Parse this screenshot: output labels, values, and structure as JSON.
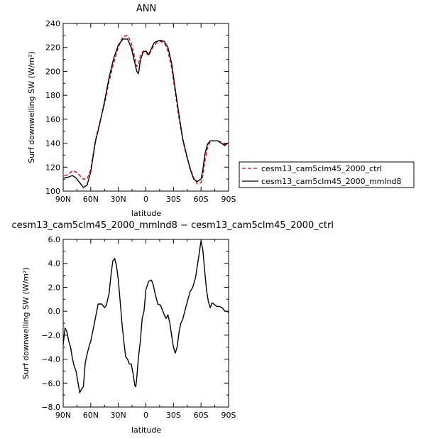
{
  "colors": {
    "ctrl": "#e00000",
    "mmlnd8": "#000000",
    "frame": "#000000",
    "background": "#ffffff"
  },
  "chart_data": [
    {
      "type": "line",
      "title": "ANN",
      "xlabel": "latitude",
      "ylabel": "Surf downwelling SW (W/m²)",
      "xlim": [
        90,
        -90
      ],
      "ylim": [
        100,
        240
      ],
      "x_ticks": [
        90,
        60,
        30,
        0,
        -30,
        -60,
        -90
      ],
      "x_tick_labels": [
        "90N",
        "60N",
        "30N",
        "0",
        "30S",
        "60S",
        "90S"
      ],
      "y_ticks": [
        100,
        120,
        140,
        160,
        180,
        200,
        220,
        240
      ],
      "y_tick_labels": [
        "100",
        "120",
        "140",
        "160",
        "180",
        "200",
        "220",
        "240"
      ],
      "legend_position": "right",
      "series": [
        {
          "name": "cesm13_cam5clm45_2000_ctrl",
          "color": "#e00000",
          "dash": "dashed",
          "x": [
            89,
            85,
            80,
            76,
            72,
            68,
            64,
            60,
            55,
            50,
            45,
            40,
            35,
            30,
            25,
            20,
            16,
            13,
            10,
            8,
            6,
            3,
            0,
            -3,
            -6,
            -9,
            -12,
            -16,
            -20,
            -24,
            -28,
            -32,
            -36,
            -40,
            -44,
            -48,
            -52,
            -56,
            -60,
            -62,
            -64,
            -67,
            -70,
            -74,
            -78,
            -82,
            -86,
            -89
          ],
          "y": [
            113,
            113.5,
            117,
            116,
            113,
            110,
            110,
            118,
            142,
            158,
            173,
            192,
            207,
            220,
            229,
            230,
            224,
            214,
            204,
            206,
            213,
            217,
            216,
            213,
            218,
            222,
            224,
            225,
            224,
            217,
            203,
            182,
            161,
            143,
            130,
            120,
            111,
            106,
            107,
            113,
            124,
            136,
            141,
            142,
            142,
            141,
            139,
            140
          ]
        },
        {
          "name": "cesm13_cam5clm45_2000_mmlnd8",
          "color": "#000000",
          "dash": "solid",
          "x": [
            89,
            85,
            80,
            76,
            72,
            68,
            64,
            60,
            55,
            50,
            45,
            40,
            35,
            30,
            25,
            20,
            16,
            13,
            10,
            8,
            6,
            3,
            0,
            -3,
            -6,
            -9,
            -12,
            -16,
            -20,
            -24,
            -28,
            -32,
            -36,
            -40,
            -44,
            -48,
            -52,
            -56,
            -60,
            -62,
            -64,
            -67,
            -70,
            -74,
            -78,
            -82,
            -86,
            -89
          ],
          "y": [
            111,
            111.5,
            113,
            111,
            107,
            103,
            105,
            116,
            141,
            157,
            175,
            195,
            211,
            222,
            227,
            227,
            220,
            210,
            200,
            198,
            209,
            216,
            217,
            214,
            219,
            224,
            225,
            226,
            225,
            220,
            207,
            185,
            164,
            144,
            131,
            119,
            110,
            108,
            110,
            118,
            130,
            139,
            142,
            142,
            142,
            140,
            138,
            140
          ]
        }
      ]
    },
    {
      "type": "line",
      "title": "cesm13_cam5clm45_2000_mmlnd8 − cesm13_cam5clm45_2000_ctrl",
      "xlabel": "latitude",
      "ylabel": "Surf downwelling SW (W/m²)",
      "xlim": [
        90,
        -90
      ],
      "ylim": [
        -8,
        6
      ],
      "x_ticks": [
        90,
        60,
        30,
        0,
        -30,
        -60,
        -90
      ],
      "x_tick_labels": [
        "90N",
        "60N",
        "30N",
        "0",
        "30S",
        "60S",
        "90S"
      ],
      "y_ticks": [
        -8,
        -6,
        -4,
        -2,
        0,
        2,
        4,
        6
      ],
      "y_tick_labels": [
        "−8.0",
        "−6.0",
        "−4.0",
        "−2.0",
        "0.0",
        "2.0",
        "4.0",
        "6.0"
      ],
      "series": [
        {
          "color": "#000000",
          "x": [
            90,
            88,
            86,
            84,
            82,
            80,
            78,
            76,
            74,
            72,
            70,
            68,
            66,
            64,
            62,
            60,
            56,
            52,
            48,
            45,
            43,
            40,
            38,
            36,
            34,
            32,
            30,
            28,
            26,
            24,
            22,
            20,
            18,
            16,
            14,
            12,
            11,
            10,
            8,
            6,
            4,
            2,
            0,
            -3,
            -6,
            -8,
            -10,
            -13,
            -16,
            -20,
            -22,
            -24,
            -26,
            -27,
            -28,
            -30,
            -32,
            -34,
            -36,
            -38,
            -40,
            -44,
            -48,
            -51,
            -54,
            -57,
            -60,
            -62,
            -64,
            -66,
            -68,
            -70,
            -72,
            -74,
            -77,
            -80,
            -83,
            -86,
            -88,
            -90
          ],
          "y": [
            -2.8,
            -1.4,
            -1.7,
            -2.5,
            -3.0,
            -3.9,
            -4.6,
            -5.0,
            -5.9,
            -6.8,
            -6.5,
            -6.3,
            -4.3,
            -3.6,
            -3.0,
            -2.5,
            -1.0,
            0.6,
            0.6,
            0.3,
            0.5,
            1.5,
            3.0,
            4.2,
            4.4,
            3.8,
            2.6,
            0.8,
            -1.0,
            -2.5,
            -3.8,
            -4.0,
            -4.4,
            -4.4,
            -5.2,
            -6.2,
            -6.3,
            -5.6,
            -3.8,
            -2.5,
            -0.6,
            0.0,
            1.8,
            2.5,
            2.6,
            2.2,
            1.5,
            0.6,
            0.5,
            -0.3,
            -0.6,
            -0.3,
            -1.0,
            -1.5,
            -2.0,
            -3.0,
            -3.5,
            -3.0,
            -1.8,
            -1.0,
            -0.7,
            0.5,
            1.6,
            2.0,
            2.8,
            4.3,
            5.9,
            5.1,
            3.4,
            1.8,
            0.8,
            0.3,
            0.7,
            0.6,
            0.4,
            0.4,
            0.3,
            0.0,
            0.0,
            -0.1
          ]
        }
      ]
    }
  ]
}
